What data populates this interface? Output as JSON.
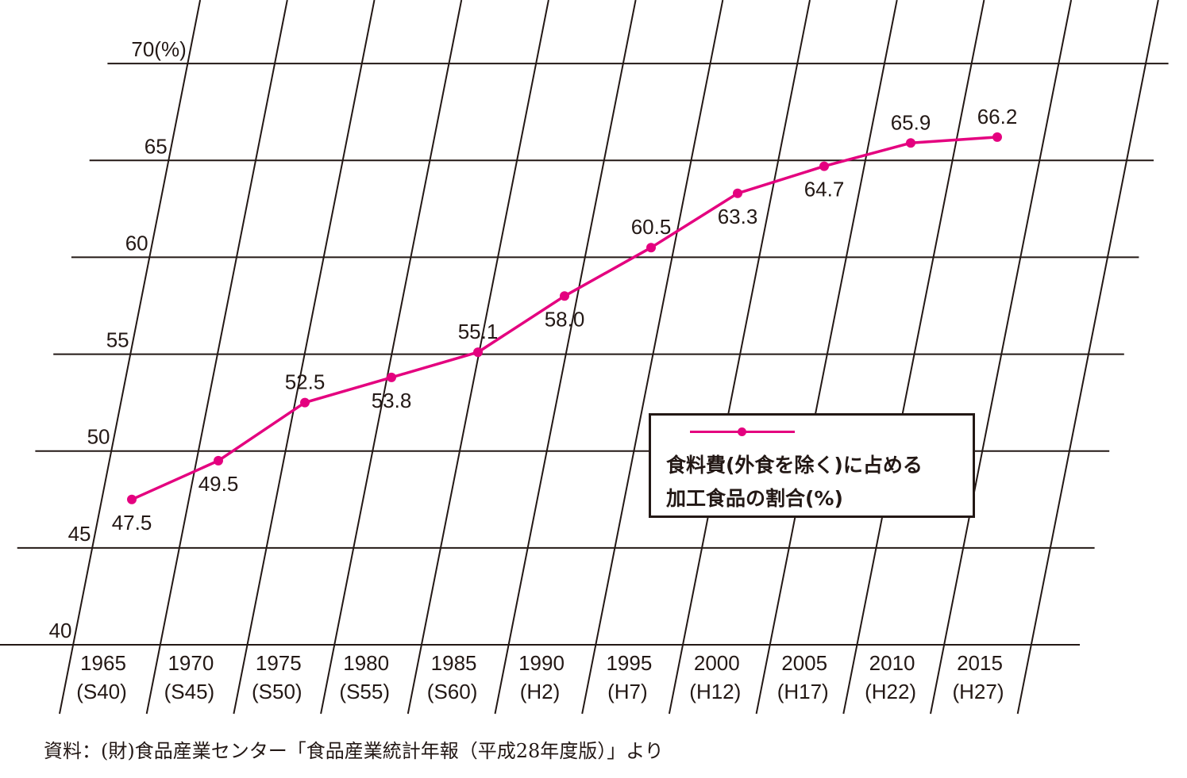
{
  "chart_data": {
    "type": "line",
    "categories": [
      "1965",
      "1970",
      "1975",
      "1980",
      "1985",
      "1990",
      "1995",
      "2000",
      "2005",
      "2010",
      "2015"
    ],
    "category_sublabels": [
      "(S40)",
      "(S45)",
      "(S50)",
      "(S55)",
      "(S60)",
      "(H2)",
      "(H7)",
      "(H12)",
      "(H17)",
      "(H22)",
      "(H27)"
    ],
    "series": [
      {
        "name_lines": [
          "食料費(外食を除く)に占める",
          "加工食品の割合(%)"
        ],
        "values": [
          47.5,
          49.5,
          52.5,
          53.8,
          55.1,
          58.0,
          60.5,
          63.3,
          64.7,
          65.9,
          66.2
        ],
        "value_labels": [
          "47.5",
          "49.5",
          "52.5",
          "53.8",
          "55.1",
          "58.0",
          "60.5",
          "63.3",
          "64.7",
          "65.9",
          "66.2"
        ],
        "label_positions": [
          "below",
          "below",
          "above",
          "below",
          "above",
          "below",
          "above",
          "below",
          "below",
          "above",
          "above"
        ]
      }
    ],
    "y_tick_labels": [
      "40",
      "45",
      "50",
      "55",
      "60",
      "65",
      "70(%)"
    ],
    "y_ticks": [
      40,
      45,
      50,
      55,
      60,
      65,
      70
    ],
    "ylim": [
      40,
      70
    ],
    "ylabel": "",
    "xlabel": "",
    "grid": true,
    "grid_style": "slanted vertical lines",
    "legend_position": "right-center",
    "colors": {
      "series": "#e4007f",
      "axis": "#231815"
    }
  },
  "source_note": "資料：(財)食品産業センター「食品産業統計年報（平成28年度版）」より"
}
